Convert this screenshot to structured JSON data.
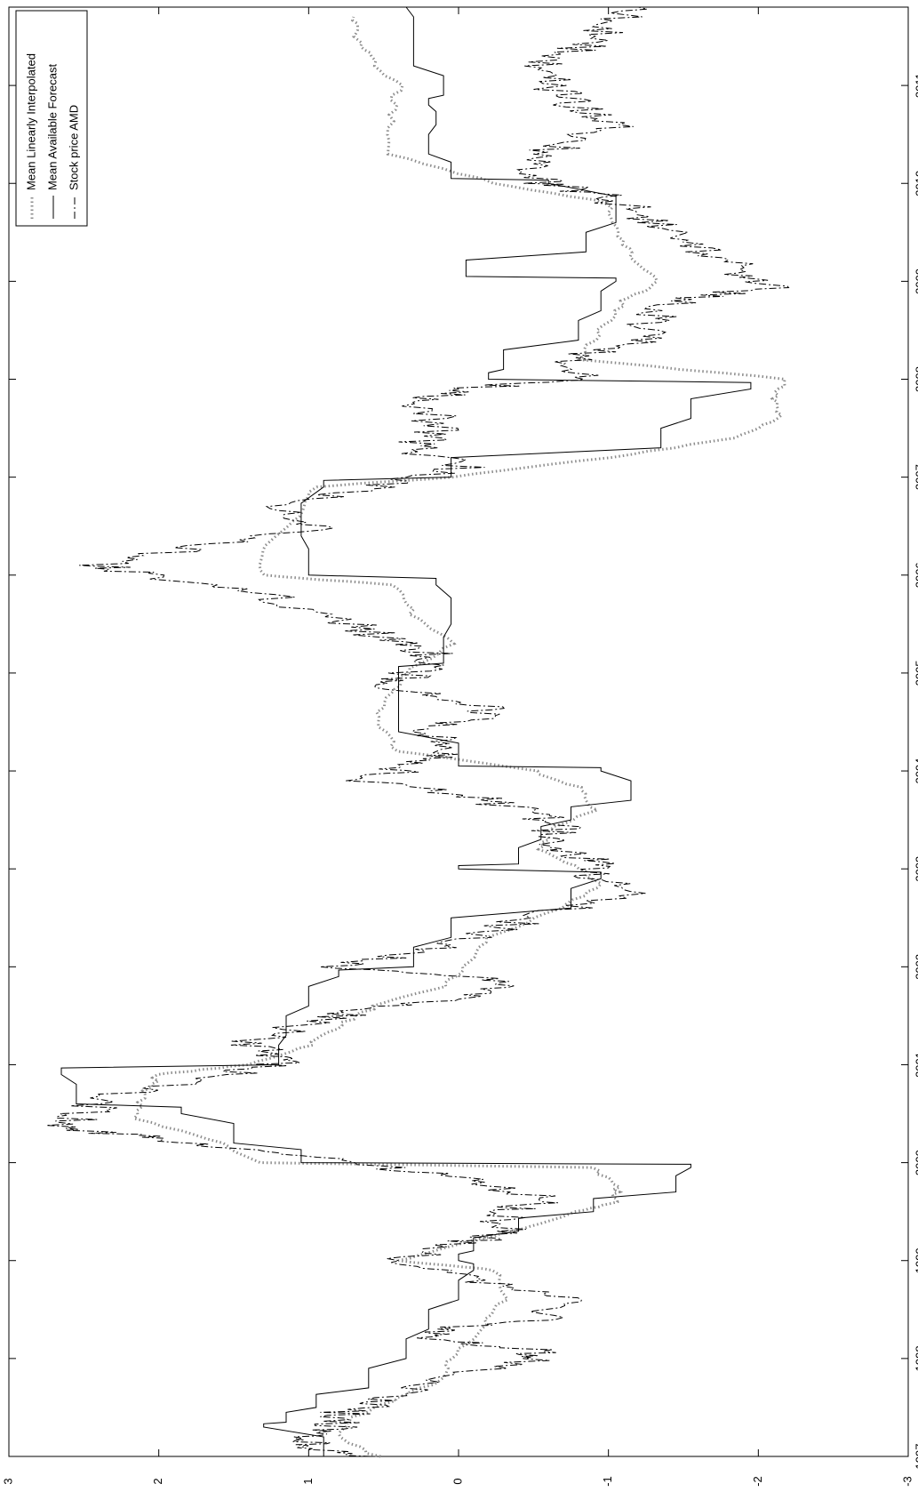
{
  "chart_data": {
    "type": "line",
    "orientation": "rotated 90° clockwise (time axis vertical, values horizontal)",
    "title": "",
    "xlabel": "",
    "ylabel": "",
    "xlim": [
      1997,
      2011.8
    ],
    "ylim": [
      -3,
      3
    ],
    "grid": false,
    "legend_position": "top-left",
    "x_ticks": [
      "1997",
      "1998",
      "1999",
      "2000",
      "2001",
      "2002",
      "2003",
      "2004",
      "2005",
      "2006",
      "2007",
      "2008",
      "2009",
      "2010",
      "2011"
    ],
    "y_ticks": [
      "-3",
      "-2",
      "-1",
      "0",
      "1",
      "2",
      "3"
    ],
    "series": [
      {
        "name": "Mean Linearly Interpolated",
        "style": "dotted-gray",
        "color": "#8c8c8c",
        "points": [
          [
            1997.0,
            0.55
          ],
          [
            1997.2,
            0.8
          ],
          [
            1997.4,
            0.7
          ],
          [
            1997.6,
            0.4
          ],
          [
            1997.8,
            0.08
          ],
          [
            1998.0,
            0.05
          ],
          [
            1998.3,
            -0.15
          ],
          [
            1998.6,
            -0.3
          ],
          [
            1998.9,
            -0.25
          ],
          [
            1999.0,
            0.4
          ],
          [
            1999.15,
            0.05
          ],
          [
            1999.35,
            -0.5
          ],
          [
            1999.5,
            -0.8
          ],
          [
            1999.6,
            -1.05
          ],
          [
            1999.75,
            -1.05
          ],
          [
            1999.95,
            -0.9
          ],
          [
            2000.0,
            1.3
          ],
          [
            2000.2,
            1.6
          ],
          [
            2000.45,
            2.15
          ],
          [
            2000.7,
            2.1
          ],
          [
            2000.9,
            2.0
          ],
          [
            2001.0,
            1.4
          ],
          [
            2001.2,
            1.0
          ],
          [
            2001.4,
            0.8
          ],
          [
            2001.6,
            0.55
          ],
          [
            2001.8,
            0.1
          ],
          [
            2002.0,
            -0.05
          ],
          [
            2002.3,
            -0.2
          ],
          [
            2002.6,
            -0.7
          ],
          [
            2002.85,
            -0.95
          ],
          [
            2003.0,
            -0.8
          ],
          [
            2003.2,
            -0.55
          ],
          [
            2003.4,
            -0.6
          ],
          [
            2003.6,
            -0.9
          ],
          [
            2003.8,
            -0.85
          ],
          [
            2004.0,
            -0.5
          ],
          [
            2004.2,
            0.4
          ],
          [
            2004.5,
            0.55
          ],
          [
            2004.8,
            0.45
          ],
          [
            2005.0,
            0.35
          ],
          [
            2005.3,
            0.05
          ],
          [
            2005.6,
            0.3
          ],
          [
            2005.9,
            0.45
          ],
          [
            2006.0,
            1.3
          ],
          [
            2006.3,
            1.3
          ],
          [
            2006.6,
            1.05
          ],
          [
            2006.9,
            0.95
          ],
          [
            2007.0,
            0.05
          ],
          [
            2007.2,
            -1.0
          ],
          [
            2007.4,
            -1.85
          ],
          [
            2007.6,
            -2.15
          ],
          [
            2007.8,
            -2.1
          ],
          [
            2008.0,
            -2.2
          ],
          [
            2008.2,
            -0.8
          ],
          [
            2008.5,
            -0.95
          ],
          [
            2008.8,
            -1.1
          ],
          [
            2009.0,
            -1.35
          ],
          [
            2009.25,
            -1.15
          ],
          [
            2009.5,
            -1.05
          ],
          [
            2009.8,
            -1.0
          ],
          [
            2010.0,
            -0.25
          ],
          [
            2010.3,
            0.45
          ],
          [
            2010.7,
            0.45
          ],
          [
            2011.0,
            0.4
          ],
          [
            2011.3,
            0.6
          ],
          [
            2011.5,
            0.7
          ],
          [
            2011.7,
            0.7
          ]
        ]
      },
      {
        "name": "Mean Available Forecast",
        "style": "solid",
        "color": "#000000",
        "points": [
          [
            1997.0,
            0.9
          ],
          [
            1997.3,
            1.3
          ],
          [
            1997.35,
            1.15
          ],
          [
            1997.5,
            0.95
          ],
          [
            1997.7,
            0.6
          ],
          [
            1998.0,
            0.35
          ],
          [
            1998.3,
            0.2
          ],
          [
            1998.6,
            0.0
          ],
          [
            1998.9,
            -0.1
          ],
          [
            1999.0,
            0.0
          ],
          [
            1999.1,
            -0.1
          ],
          [
            1999.3,
            -0.4
          ],
          [
            1999.5,
            -0.9
          ],
          [
            1999.7,
            -1.45
          ],
          [
            1999.95,
            -1.55
          ],
          [
            2000.0,
            1.05
          ],
          [
            2000.2,
            1.5
          ],
          [
            2000.5,
            1.85
          ],
          [
            2000.6,
            2.55
          ],
          [
            2000.9,
            2.65
          ],
          [
            2001.0,
            1.2
          ],
          [
            2001.3,
            1.15
          ],
          [
            2001.6,
            1.0
          ],
          [
            2001.9,
            0.8
          ],
          [
            2002.0,
            0.3
          ],
          [
            2002.3,
            0.05
          ],
          [
            2002.6,
            -0.75
          ],
          [
            2002.9,
            -0.95
          ],
          [
            2003.0,
            0.0
          ],
          [
            2003.05,
            -0.4
          ],
          [
            2003.3,
            -0.55
          ],
          [
            2003.5,
            -0.75
          ],
          [
            2003.7,
            -1.15
          ],
          [
            2004.0,
            -0.95
          ],
          [
            2004.05,
            0.0
          ],
          [
            2004.4,
            0.4
          ],
          [
            2004.8,
            0.4
          ],
          [
            2005.0,
            0.4
          ],
          [
            2005.1,
            0.1
          ],
          [
            2005.5,
            0.05
          ],
          [
            2005.9,
            0.15
          ],
          [
            2006.0,
            1.0
          ],
          [
            2006.4,
            1.05
          ],
          [
            2006.9,
            0.9
          ],
          [
            2007.0,
            0.05
          ],
          [
            2007.3,
            -1.35
          ],
          [
            2007.6,
            -1.55
          ],
          [
            2007.9,
            -1.95
          ],
          [
            2008.0,
            -0.2
          ],
          [
            2008.1,
            -0.3
          ],
          [
            2008.4,
            -0.8
          ],
          [
            2008.7,
            -0.95
          ],
          [
            2009.0,
            -1.05
          ],
          [
            2009.05,
            -0.05
          ],
          [
            2009.3,
            -0.85
          ],
          [
            2009.6,
            -1.05
          ],
          [
            2010.0,
            -0.6
          ],
          [
            2010.05,
            0.05
          ],
          [
            2010.3,
            0.2
          ],
          [
            2010.6,
            0.15
          ],
          [
            2010.8,
            0.2
          ],
          [
            2010.9,
            0.1
          ],
          [
            2011.2,
            0.3
          ],
          [
            2011.5,
            0.3
          ],
          [
            2011.8,
            0.35
          ]
        ]
      },
      {
        "name": "Stock price AMD",
        "style": "dashdot",
        "color": "#000000",
        "points": [
          [
            1997.0,
            0.6
          ],
          [
            1997.1,
            0.95
          ],
          [
            1997.2,
            1.1
          ],
          [
            1997.3,
            0.85
          ],
          [
            1997.45,
            0.75
          ],
          [
            1997.6,
            0.45
          ],
          [
            1997.8,
            0.05
          ],
          [
            1998.0,
            -0.55
          ],
          [
            1998.1,
            -0.45
          ],
          [
            1998.2,
            0.2
          ],
          [
            1998.3,
            0.1
          ],
          [
            1998.4,
            -0.55
          ],
          [
            1998.6,
            -0.7
          ],
          [
            1998.8,
            -0.1
          ],
          [
            1999.0,
            0.4
          ],
          [
            1999.2,
            -0.1
          ],
          [
            1999.3,
            -0.35
          ],
          [
            1999.5,
            -0.25
          ],
          [
            1999.6,
            -0.6
          ],
          [
            1999.8,
            -0.2
          ],
          [
            1999.95,
            0.5
          ],
          [
            2000.1,
            1.2
          ],
          [
            2000.25,
            2.0
          ],
          [
            2000.35,
            2.7
          ],
          [
            2000.5,
            2.5
          ],
          [
            2000.7,
            2.3
          ],
          [
            2000.9,
            1.5
          ],
          [
            2001.05,
            1.1
          ],
          [
            2001.2,
            1.4
          ],
          [
            2001.4,
            1.1
          ],
          [
            2001.55,
            0.65
          ],
          [
            2001.7,
            0.0
          ],
          [
            2001.85,
            -0.4
          ],
          [
            2002.0,
            0.8
          ],
          [
            2002.15,
            0.2
          ],
          [
            2002.3,
            -0.05
          ],
          [
            2002.5,
            -0.5
          ],
          [
            2002.75,
            -1.1
          ],
          [
            2002.95,
            -0.85
          ],
          [
            2003.1,
            -0.9
          ],
          [
            2003.25,
            -0.5
          ],
          [
            2003.45,
            -0.7
          ],
          [
            2003.6,
            -0.4
          ],
          [
            2003.75,
            -0.1
          ],
          [
            2003.9,
            0.65
          ],
          [
            2004.05,
            0.3
          ],
          [
            2004.2,
            0.15
          ],
          [
            2004.4,
            0.2
          ],
          [
            2004.55,
            -0.1
          ],
          [
            2004.7,
            -0.15
          ],
          [
            2004.85,
            0.55
          ],
          [
            2005.0,
            0.3
          ],
          [
            2005.2,
            0.2
          ],
          [
            2005.35,
            0.5
          ],
          [
            2005.55,
            0.8
          ],
          [
            2005.8,
            1.3
          ],
          [
            2006.0,
            2.1
          ],
          [
            2006.1,
            2.4
          ],
          [
            2006.3,
            1.7
          ],
          [
            2006.5,
            0.9
          ],
          [
            2006.7,
            1.2
          ],
          [
            2006.9,
            0.55
          ],
          [
            2007.1,
            0.0
          ],
          [
            2007.3,
            0.3
          ],
          [
            2007.5,
            0.1
          ],
          [
            2007.75,
            0.25
          ],
          [
            2007.9,
            0.05
          ],
          [
            2008.0,
            -0.9
          ],
          [
            2008.2,
            -0.75
          ],
          [
            2008.4,
            -1.2
          ],
          [
            2008.6,
            -1.25
          ],
          [
            2008.8,
            -1.5
          ],
          [
            2008.95,
            -2.1
          ],
          [
            2009.1,
            -1.9
          ],
          [
            2009.3,
            -1.65
          ],
          [
            2009.5,
            -1.4
          ],
          [
            2009.7,
            -1.2
          ],
          [
            2009.9,
            -0.9
          ],
          [
            2010.0,
            -0.6
          ],
          [
            2010.2,
            -0.5
          ],
          [
            2010.4,
            -0.7
          ],
          [
            2010.6,
            -1.1
          ],
          [
            2010.8,
            -0.75
          ],
          [
            2011.0,
            -0.6
          ],
          [
            2011.2,
            -0.55
          ],
          [
            2011.4,
            -0.85
          ],
          [
            2011.6,
            -1.0
          ],
          [
            2011.8,
            -1.2
          ]
        ]
      }
    ]
  }
}
